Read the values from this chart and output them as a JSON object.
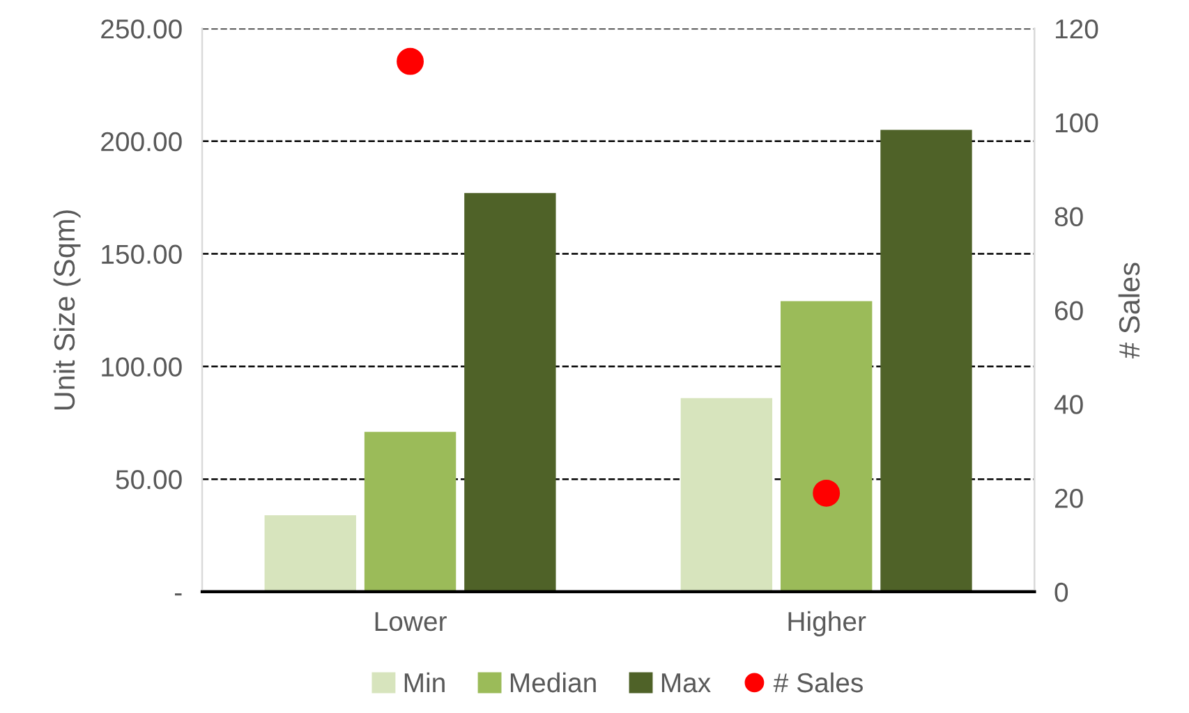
{
  "chart_data": {
    "type": "bar",
    "ylabel": "Unit Size (Sqm)",
    "y2label": "# Sales",
    "categories": [
      "Lower",
      "Higher"
    ],
    "series": [
      {
        "name": "Min",
        "color": "#d7e4bd",
        "values": [
          34,
          86
        ]
      },
      {
        "name": "Median",
        "color": "#9bbb59",
        "values": [
          71,
          129
        ]
      },
      {
        "name": "Max",
        "color": "#4f6228",
        "values": [
          177,
          205
        ]
      },
      {
        "name": "# Sales",
        "type": "scatter",
        "axis": "y2",
        "color": "#ff0000",
        "values": [
          113,
          21
        ],
        "marker": "circle"
      }
    ],
    "ylim": [
      0,
      250
    ],
    "yticks": [
      {
        "value": 0,
        "label": "-"
      },
      {
        "value": 50,
        "label": "50.00"
      },
      {
        "value": 100,
        "label": "100.00"
      },
      {
        "value": 150,
        "label": "150.00"
      },
      {
        "value": 200,
        "label": "200.00"
      },
      {
        "value": 250,
        "label": "250.00"
      }
    ],
    "y2lim": [
      0,
      120
    ],
    "y2ticks": [
      0,
      20,
      40,
      60,
      80,
      100,
      120
    ],
    "grid": "y",
    "legend": "bottom"
  }
}
